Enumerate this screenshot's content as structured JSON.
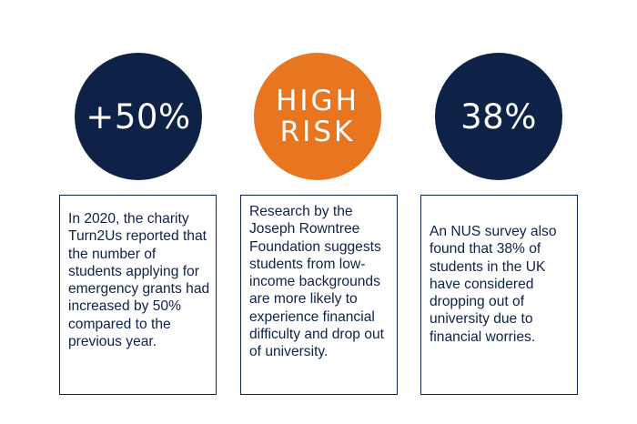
{
  "stats": [
    {
      "value": "+50%",
      "color": "#0d2246",
      "text": "In 2020, the charity Turn2Us reported that the number of students applying for emergency grants had increased by 50% compared to the previous year."
    },
    {
      "value": "HIGH\nRISK",
      "color": "#e8751f",
      "text": "Research by the Joseph Rowntree Foundation suggests students from low-income backgrounds are more likely to experience financial difficulty and drop out of university."
    },
    {
      "value": "38%",
      "color": "#0d2246",
      "text": "An NUS survey also found that 38% of students in the UK have considered dropping out of university due to financial worries."
    }
  ]
}
